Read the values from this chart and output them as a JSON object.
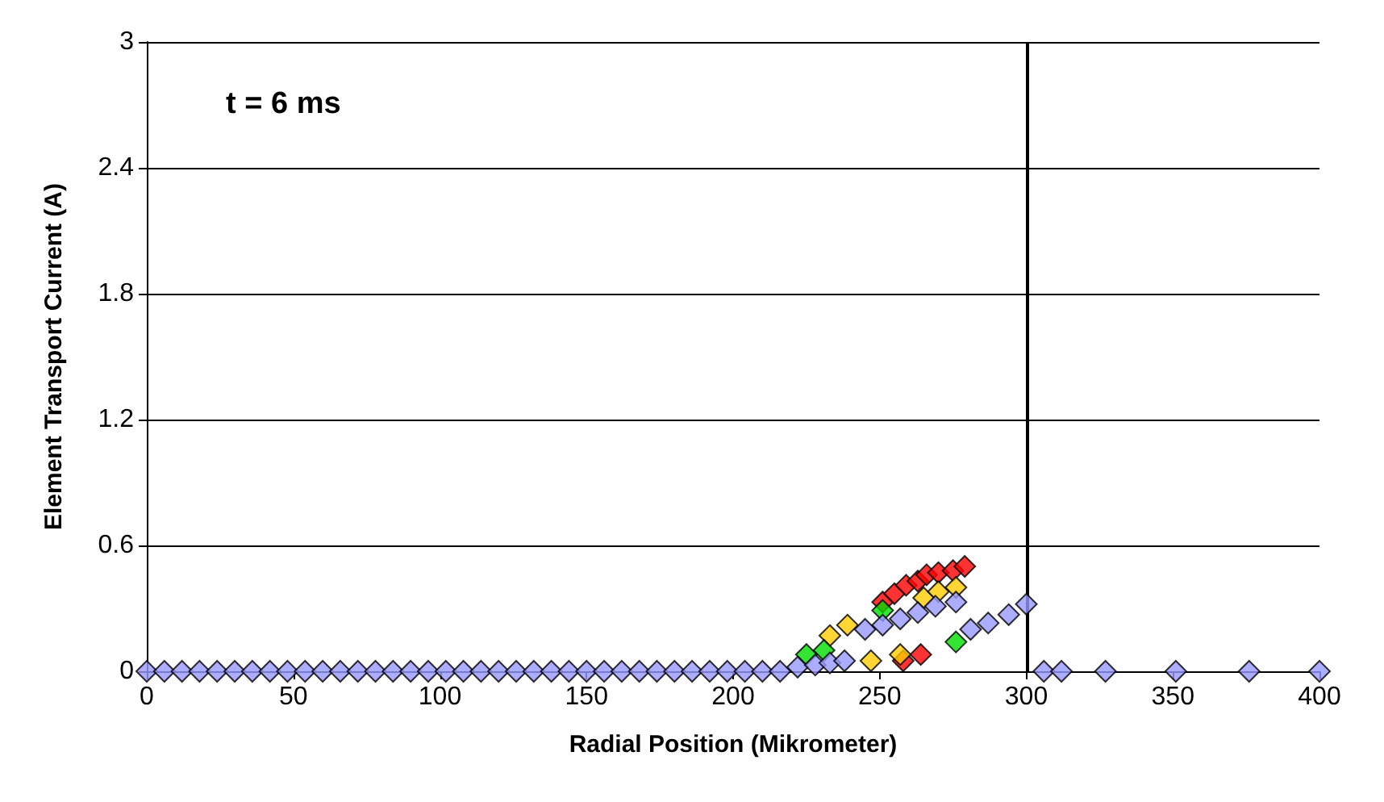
{
  "chart_data": {
    "type": "scatter",
    "xlabel": "Radial Position (Mikrometer)",
    "ylabel": "Element Transport Current (A)",
    "annotations": [
      "t = 6 ms"
    ],
    "xlim": [
      0,
      400
    ],
    "xticks": [
      0,
      50,
      100,
      150,
      200,
      250,
      300,
      350,
      400
    ],
    "ylim": [
      0,
      3
    ],
    "yticks": [
      0,
      0.6,
      1.2,
      1.8,
      2.4,
      3
    ],
    "grid": "y",
    "marker": "diamond",
    "ref_lines": [
      {
        "axis": "x",
        "value": 300,
        "color": "#000000"
      }
    ],
    "series": [
      {
        "color": "#ff0000",
        "x": [
          251,
          255,
          259,
          263,
          266,
          270,
          275,
          279,
          258,
          264
        ],
        "values": [
          0.33,
          0.37,
          0.41,
          0.43,
          0.46,
          0.47,
          0.48,
          0.5,
          0.05,
          0.08
        ]
      },
      {
        "color": "#ffcc00",
        "x": [
          233,
          239,
          247,
          257,
          265,
          270,
          276
        ],
        "values": [
          0.17,
          0.22,
          0.05,
          0.08,
          0.35,
          0.38,
          0.4
        ]
      },
      {
        "color": "#00dd00",
        "x": [
          225,
          231,
          251,
          276
        ],
        "values": [
          0.08,
          0.1,
          0.29,
          0.14
        ]
      },
      {
        "color": "#9999ff",
        "x": [
          0,
          6,
          12,
          18,
          24,
          30,
          36,
          42,
          48,
          54,
          60,
          66,
          72,
          78,
          84,
          90,
          96,
          102,
          108,
          114,
          120,
          126,
          132,
          138,
          144,
          150,
          156,
          162,
          168,
          174,
          180,
          186,
          192,
          198,
          204,
          210,
          216,
          222,
          228,
          233,
          238,
          245,
          251,
          257,
          263,
          269,
          276,
          281,
          287,
          294,
          300,
          306,
          312,
          327,
          351,
          376,
          400
        ],
        "values": [
          0,
          0,
          0,
          0,
          0,
          0,
          0,
          0,
          0,
          0,
          0,
          0,
          0,
          0,
          0,
          0,
          0,
          0,
          0,
          0,
          0,
          0,
          0,
          0,
          0,
          0,
          0,
          0,
          0,
          0,
          0,
          0,
          0,
          0,
          0,
          0,
          0,
          0.02,
          0.03,
          0.04,
          0.05,
          0.2,
          0.22,
          0.25,
          0.28,
          0.31,
          0.33,
          0.2,
          0.23,
          0.27,
          0.32,
          0,
          0,
          0,
          0,
          0,
          0
        ]
      }
    ]
  }
}
